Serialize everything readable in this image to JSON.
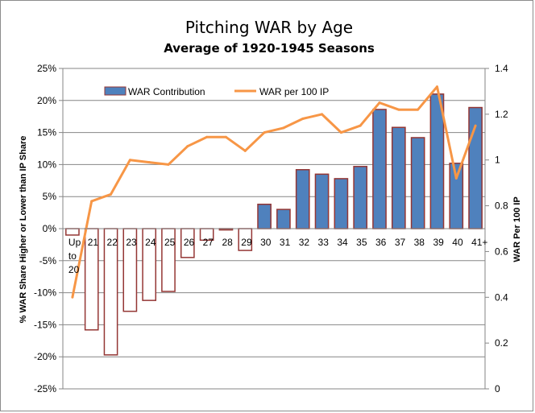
{
  "chart_data": {
    "type": "bar",
    "title": "Pitching WAR by Age",
    "subtitle": "Average of 1920-1945 Seasons",
    "categories": [
      "Up to 20",
      "21",
      "22",
      "23",
      "24",
      "25",
      "26",
      "27",
      "28",
      "29",
      "30",
      "31",
      "32",
      "33",
      "34",
      "35",
      "36",
      "37",
      "38",
      "39",
      "40",
      "41+"
    ],
    "series": [
      {
        "name": "WAR Contribution",
        "type": "bar",
        "axis": "left",
        "values": [
          -1.0,
          -15.8,
          -19.7,
          -12.9,
          -11.2,
          -9.8,
          -4.5,
          -1.8,
          -0.2,
          -3.4,
          3.8,
          3.0,
          9.2,
          8.5,
          7.8,
          9.7,
          18.6,
          15.8,
          14.2,
          21.0,
          10.2,
          18.9
        ]
      },
      {
        "name": "WAR per 100 IP",
        "type": "line",
        "axis": "right",
        "values": [
          0.4,
          0.82,
          0.85,
          1.0,
          0.99,
          0.98,
          1.06,
          1.1,
          1.1,
          1.04,
          1.12,
          1.14,
          1.18,
          1.2,
          1.12,
          1.15,
          1.25,
          1.22,
          1.22,
          1.32,
          0.92,
          1.15
        ]
      }
    ],
    "ylabel": "% WAR Share Higher or Lower than IP Share",
    "y2label": "WAR Per 100 IP",
    "ylim": [
      -25,
      25
    ],
    "y2lim": [
      0,
      1.4
    ],
    "yticks": [
      "25%",
      "20%",
      "15%",
      "10%",
      "5%",
      "0%",
      "-5%",
      "-10%",
      "-15%",
      "-20%",
      "-25%"
    ],
    "y2ticks": [
      "1.4",
      "1.2",
      "1",
      "0.8",
      "0.6",
      "0.4",
      "0.2",
      "0"
    ],
    "grid": true,
    "legend_position": "top-left",
    "colors": {
      "bar_fill_positive": "#4f81bd",
      "bar_fill_negative": "#ffffff",
      "bar_border": "#943634",
      "line": "#f79646",
      "grid": "#868686"
    }
  }
}
